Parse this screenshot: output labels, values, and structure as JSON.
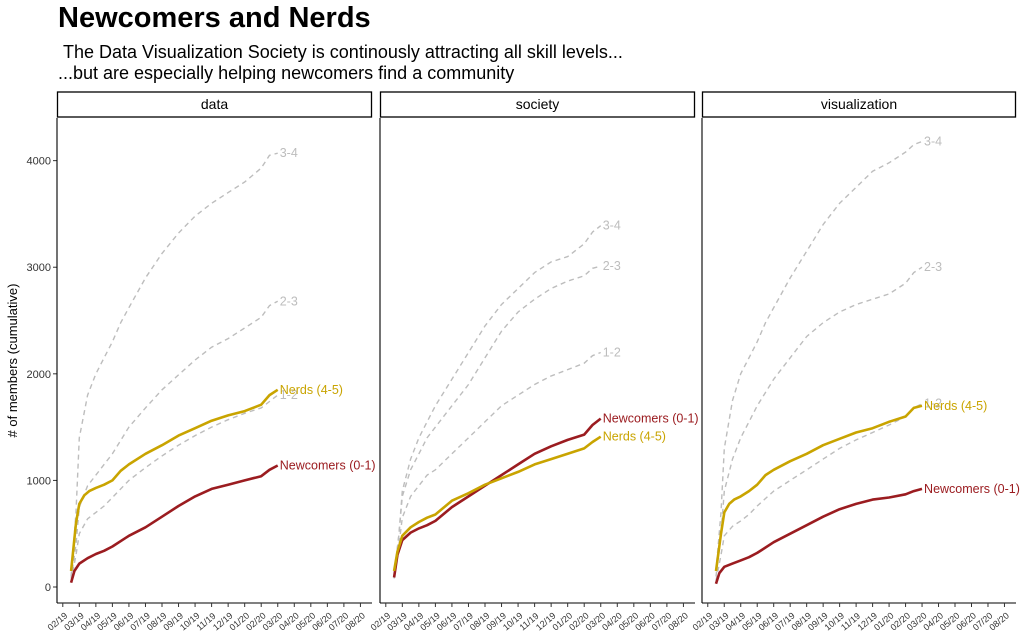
{
  "title": "Newcomers and Nerds",
  "subtitle_line1": "The Data Visualization Society is continously attracting all skill levels...",
  "subtitle_line2": "...but are especially helping newcomers find a community",
  "colors": {
    "newcomers": "#9b1c20",
    "nerds": "#c9a400",
    "middle": "#bdbdbd"
  },
  "chart_data": {
    "type": "line",
    "ylabel": "# of members (cumulative)",
    "ylim": [
      -150,
      4400
    ],
    "yticks": [
      0,
      1000,
      2000,
      3000,
      4000
    ],
    "x_tick_labels": [
      "02/19",
      "03/19",
      "04/19",
      "05/19",
      "06/19",
      "07/19",
      "08/19",
      "09/19",
      "10/19",
      "11/19",
      "12/19",
      "01/20",
      "02/20",
      "03/20",
      "04/20",
      "05/20",
      "06/20",
      "07/20",
      "08/20"
    ],
    "xlim": [
      -0.35,
      18.7
    ],
    "panels": [
      {
        "name": "data",
        "series": [
          {
            "name": "3-4",
            "style": "dashed",
            "color": "#bdbdbd",
            "label": "3-4",
            "x": [
              0.5,
              0.8,
              1.0,
              1.5,
              2.0,
              2.5,
              3.0,
              3.5,
              4.0,
              5.0,
              6.0,
              7.0,
              8.0,
              9.0,
              10.0,
              11.0,
              12.0,
              12.5,
              13.0
            ],
            "y": [
              100,
              700,
              1400,
              1800,
              2000,
              2150,
              2300,
              2480,
              2620,
              2900,
              3130,
              3320,
              3480,
              3600,
              3700,
              3800,
              3930,
              4050,
              4070
            ]
          },
          {
            "name": "2-3",
            "style": "dashed",
            "color": "#bdbdbd",
            "label": "2-3",
            "x": [
              0.5,
              0.8,
              1.0,
              1.5,
              2.0,
              2.5,
              3.0,
              4.0,
              5.0,
              6.0,
              7.0,
              8.0,
              9.0,
              10.0,
              11.0,
              12.0,
              12.5,
              13.0
            ],
            "y": [
              80,
              400,
              750,
              950,
              1050,
              1150,
              1250,
              1500,
              1680,
              1850,
              1990,
              2130,
              2250,
              2330,
              2430,
              2530,
              2640,
              2680
            ]
          },
          {
            "name": "1-2",
            "style": "dashed",
            "color": "#bdbdbd",
            "label": "1-2",
            "x": [
              0.5,
              0.8,
              1.0,
              1.5,
              2.0,
              2.5,
              3.0,
              4.0,
              5.0,
              6.0,
              7.0,
              8.0,
              9.0,
              10.0,
              11.0,
              12.0,
              12.5,
              13.0
            ],
            "y": [
              60,
              300,
              500,
              640,
              700,
              760,
              840,
              1000,
              1120,
              1230,
              1330,
              1420,
              1500,
              1570,
              1630,
              1680,
              1740,
              1800
            ]
          },
          {
            "name": "Nerds (4-5)",
            "style": "solid",
            "color": "#c9a400",
            "label": "Nerds (4-5)",
            "x": [
              0.5,
              0.8,
              1.0,
              1.3,
              1.6,
              2.0,
              2.5,
              3.0,
              3.5,
              4.0,
              5.0,
              6.0,
              7.0,
              8.0,
              9.0,
              10.0,
              11.0,
              12.0,
              12.5,
              13.0
            ],
            "y": [
              150,
              600,
              780,
              860,
              900,
              930,
              960,
              1000,
              1090,
              1150,
              1250,
              1330,
              1420,
              1490,
              1560,
              1610,
              1650,
              1710,
              1800,
              1850
            ]
          },
          {
            "name": "Newcomers (0-1)",
            "style": "solid",
            "color": "#9b1c20",
            "label": "Newcomers (0-1)",
            "x": [
              0.5,
              0.7,
              1.0,
              1.5,
              2.0,
              2.5,
              3.0,
              4.0,
              5.0,
              6.0,
              7.0,
              8.0,
              9.0,
              10.0,
              11.0,
              12.0,
              12.5,
              13.0
            ],
            "y": [
              40,
              150,
              220,
              270,
              310,
              340,
              380,
              480,
              560,
              660,
              760,
              850,
              920,
              960,
              1000,
              1040,
              1100,
              1140
            ]
          }
        ]
      },
      {
        "name": "society",
        "series": [
          {
            "name": "3-4",
            "style": "dashed",
            "color": "#bdbdbd",
            "label": "3-4",
            "x": [
              0.5,
              0.8,
              1.0,
              1.5,
              2.0,
              2.5,
              3.0,
              4.0,
              5.0,
              6.0,
              7.0,
              8.0,
              9.0,
              10.0,
              11.0,
              12.0,
              12.5,
              13.0
            ],
            "y": [
              100,
              500,
              900,
              1200,
              1400,
              1550,
              1700,
              1950,
              2200,
              2450,
              2650,
              2800,
              2950,
              3050,
              3100,
              3220,
              3330,
              3390
            ]
          },
          {
            "name": "2-3",
            "style": "dashed",
            "color": "#bdbdbd",
            "label": "2-3",
            "x": [
              0.5,
              0.8,
              1.0,
              1.5,
              2.0,
              2.5,
              3.0,
              4.0,
              5.0,
              6.0,
              7.0,
              8.0,
              9.0,
              10.0,
              11.0,
              12.0,
              12.5,
              13.0
            ],
            "y": [
              100,
              500,
              850,
              1100,
              1250,
              1400,
              1500,
              1700,
              1900,
              2150,
              2400,
              2580,
              2700,
              2800,
              2870,
              2920,
              2990,
              3010
            ]
          },
          {
            "name": "1-2",
            "style": "dashed",
            "color": "#bdbdbd",
            "label": "1-2",
            "x": [
              0.5,
              0.8,
              1.0,
              1.5,
              2.0,
              2.5,
              3.0,
              4.0,
              5.0,
              6.0,
              7.0,
              8.0,
              9.0,
              10.0,
              11.0,
              12.0,
              12.5,
              13.0
            ],
            "y": [
              80,
              400,
              650,
              850,
              950,
              1050,
              1100,
              1250,
              1400,
              1550,
              1700,
              1800,
              1900,
              1980,
              2040,
              2100,
              2170,
              2200
            ]
          },
          {
            "name": "Newcomers (0-1)",
            "style": "solid",
            "color": "#9b1c20",
            "label": "Newcomers (0-1)",
            "x": [
              0.5,
              0.7,
              1.0,
              1.5,
              2.0,
              2.5,
              3.0,
              4.0,
              5.0,
              6.0,
              7.0,
              8.0,
              9.0,
              10.0,
              11.0,
              12.0,
              12.5,
              13.0
            ],
            "y": [
              90,
              300,
              440,
              510,
              550,
              580,
              620,
              750,
              850,
              950,
              1050,
              1150,
              1250,
              1320,
              1380,
              1430,
              1520,
              1580
            ]
          },
          {
            "name": "Nerds (4-5)",
            "style": "solid",
            "color": "#c9a400",
            "label": "Nerds (4-5)",
            "x": [
              0.5,
              0.7,
              1.0,
              1.5,
              2.0,
              2.5,
              3.0,
              4.0,
              5.0,
              6.0,
              7.0,
              8.0,
              9.0,
              10.0,
              11.0,
              12.0,
              12.5,
              13.0
            ],
            "y": [
              150,
              330,
              480,
              560,
              610,
              650,
              680,
              810,
              880,
              960,
              1020,
              1080,
              1150,
              1200,
              1250,
              1300,
              1360,
              1410
            ]
          }
        ]
      },
      {
        "name": "visualization",
        "series": [
          {
            "name": "3-4",
            "style": "dashed",
            "color": "#bdbdbd",
            "label": "3-4",
            "x": [
              0.5,
              0.8,
              1.0,
              1.5,
              2.0,
              2.5,
              3.0,
              3.5,
              4.0,
              5.0,
              6.0,
              7.0,
              8.0,
              9.0,
              10.0,
              11.0,
              12.0,
              12.5,
              13.0
            ],
            "y": [
              150,
              700,
              1300,
              1750,
              2000,
              2150,
              2300,
              2480,
              2620,
              2900,
              3150,
              3400,
              3600,
              3750,
              3900,
              3980,
              4080,
              4150,
              4180
            ]
          },
          {
            "name": "2-3",
            "style": "dashed",
            "color": "#bdbdbd",
            "label": "2-3",
            "x": [
              0.5,
              0.8,
              1.0,
              1.5,
              2.0,
              2.5,
              3.0,
              4.0,
              5.0,
              6.0,
              7.0,
              8.0,
              9.0,
              10.0,
              11.0,
              12.0,
              12.5,
              13.0
            ],
            "y": [
              100,
              500,
              900,
              1200,
              1400,
              1550,
              1700,
              1950,
              2150,
              2350,
              2480,
              2580,
              2650,
              2700,
              2750,
              2850,
              2950,
              3000
            ]
          },
          {
            "name": "1-2",
            "style": "dashed",
            "color": "#bdbdbd",
            "label": "1-2",
            "x": [
              0.5,
              0.8,
              1.0,
              1.5,
              2.0,
              2.5,
              3.0,
              4.0,
              5.0,
              6.0,
              7.0,
              8.0,
              9.0,
              10.0,
              11.0,
              12.0,
              12.5,
              13.0
            ],
            "y": [
              60,
              300,
              480,
              570,
              620,
              680,
              760,
              900,
              1000,
              1100,
              1200,
              1300,
              1380,
              1450,
              1520,
              1600,
              1680,
              1720
            ]
          },
          {
            "name": "Nerds (4-5)",
            "style": "solid",
            "color": "#c9a400",
            "label": "Nerds (4-5)",
            "x": [
              0.5,
              0.8,
              1.0,
              1.3,
              1.6,
              2.0,
              2.5,
              3.0,
              3.5,
              4.0,
              5.0,
              6.0,
              7.0,
              8.0,
              9.0,
              10.0,
              11.0,
              12.0,
              12.5,
              13.0
            ],
            "y": [
              150,
              500,
              700,
              780,
              820,
              850,
              900,
              960,
              1050,
              1100,
              1180,
              1250,
              1330,
              1390,
              1450,
              1490,
              1550,
              1600,
              1680,
              1700
            ]
          },
          {
            "name": "Newcomers (0-1)",
            "style": "solid",
            "color": "#9b1c20",
            "label": "Newcomers (0-1)",
            "x": [
              0.5,
              0.7,
              1.0,
              1.5,
              2.0,
              2.5,
              3.0,
              4.0,
              5.0,
              6.0,
              7.0,
              8.0,
              9.0,
              10.0,
              11.0,
              12.0,
              12.5,
              13.0
            ],
            "y": [
              30,
              130,
              190,
              220,
              250,
              280,
              320,
              420,
              500,
              580,
              660,
              730,
              780,
              820,
              840,
              870,
              900,
              920
            ]
          }
        ]
      }
    ]
  }
}
